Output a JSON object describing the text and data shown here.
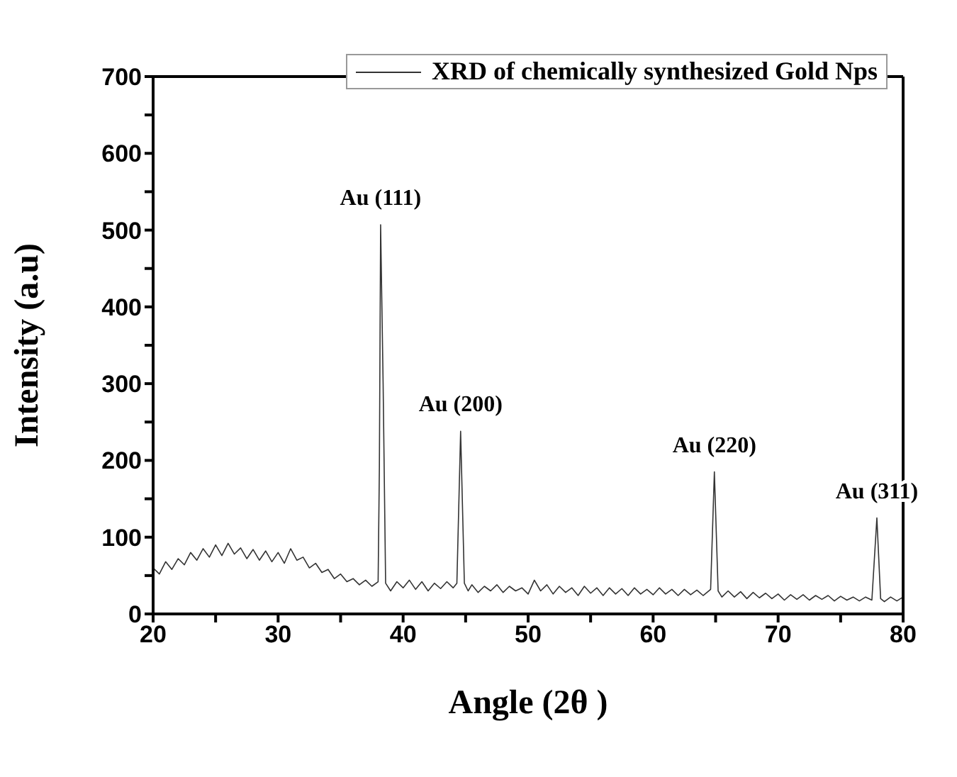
{
  "chart_data": {
    "type": "line",
    "xlabel": "Angle (2θ )",
    "ylabel": "Intensity (a.u)",
    "xlim": [
      20,
      80
    ],
    "ylim": [
      0,
      700
    ],
    "xticks": [
      20,
      {
        "value": 25,
        "label": null
      },
      30,
      {
        "value": 35,
        "label": null
      },
      40,
      {
        "value": 45,
        "label": null
      },
      50,
      {
        "value": 55,
        "label": null
      },
      60,
      {
        "value": 65,
        "label": null
      },
      70,
      {
        "value": 75,
        "label": null
      },
      80
    ],
    "yticks": [
      0,
      {
        "value": 50,
        "label": null
      },
      100,
      {
        "value": 150,
        "label": null
      },
      200,
      {
        "value": 250,
        "label": null
      },
      300,
      {
        "value": 350,
        "label": null
      },
      400,
      {
        "value": 450,
        "label": null
      },
      500,
      {
        "value": 550,
        "label": null
      },
      600,
      {
        "value": 650,
        "label": null
      },
      700
    ],
    "grid": false,
    "legend": "top right",
    "marker": "none",
    "line_style": "solid",
    "annotations": [
      {
        "text": "Au (111)",
        "x": 38.2,
        "y": 507
      },
      {
        "text": "Au (200)",
        "x": 44.6,
        "y": 238
      },
      {
        "text": "Au (220)",
        "x": 64.9,
        "y": 185
      },
      {
        "text": "Au (311)",
        "x": 77.9,
        "y": 125
      }
    ],
    "series": [
      {
        "name": "XRD of chemically synthesized Gold Nps",
        "color": "#333333",
        "x": [
          20,
          20.5,
          21,
          21.5,
          22,
          22.5,
          23,
          23.5,
          24,
          24.5,
          25,
          25.5,
          26,
          26.5,
          27,
          27.5,
          28,
          28.5,
          29,
          29.5,
          30,
          30.5,
          31,
          31.5,
          32,
          32.5,
          33,
          33.5,
          34,
          34.5,
          35,
          35.5,
          36,
          36.5,
          37,
          37.5,
          38,
          38.1,
          38.2,
          38.4,
          38.6,
          39,
          39.5,
          40,
          40.5,
          41,
          41.5,
          42,
          42.5,
          43,
          43.5,
          44,
          44.3,
          44.6,
          44.9,
          45.2,
          45.5,
          46,
          46.5,
          47,
          47.5,
          48,
          48.5,
          49,
          49.5,
          50,
          50.5,
          51,
          51.5,
          52,
          52.5,
          53,
          53.5,
          54,
          54.5,
          55,
          55.5,
          56,
          56.5,
          57,
          57.5,
          58,
          58.5,
          59,
          59.5,
          60,
          60.5,
          61,
          61.5,
          62,
          62.5,
          63,
          63.5,
          64,
          64.6,
          64.9,
          65.2,
          65.5,
          66,
          66.5,
          67,
          67.5,
          68,
          68.5,
          69,
          69.5,
          70,
          70.5,
          71,
          71.5,
          72,
          72.5,
          73,
          73.5,
          74,
          74.5,
          75,
          75.5,
          76,
          76.5,
          77,
          77.5,
          77.9,
          78.2,
          78.5,
          79,
          79.5,
          80
        ],
        "values": [
          60,
          52,
          68,
          58,
          72,
          64,
          80,
          70,
          85,
          74,
          90,
          76,
          92,
          78,
          86,
          72,
          84,
          70,
          82,
          68,
          80,
          66,
          85,
          70,
          74,
          60,
          66,
          54,
          58,
          46,
          52,
          42,
          46,
          38,
          44,
          36,
          42,
          190,
          507,
          300,
          40,
          30,
          42,
          34,
          44,
          32,
          42,
          30,
          40,
          33,
          42,
          34,
          40,
          238,
          40,
          30,
          38,
          28,
          36,
          30,
          38,
          28,
          36,
          30,
          34,
          26,
          44,
          30,
          38,
          26,
          36,
          28,
          34,
          24,
          36,
          27,
          34,
          24,
          34,
          26,
          33,
          24,
          34,
          26,
          32,
          25,
          34,
          26,
          32,
          24,
          32,
          25,
          31,
          24,
          32,
          185,
          30,
          22,
          30,
          22,
          29,
          20,
          28,
          21,
          27,
          20,
          26,
          18,
          25,
          19,
          25,
          18,
          24,
          19,
          24,
          17,
          23,
          18,
          22,
          17,
          22,
          18,
          125,
          20,
          16,
          22,
          17,
          22
        ]
      }
    ]
  }
}
